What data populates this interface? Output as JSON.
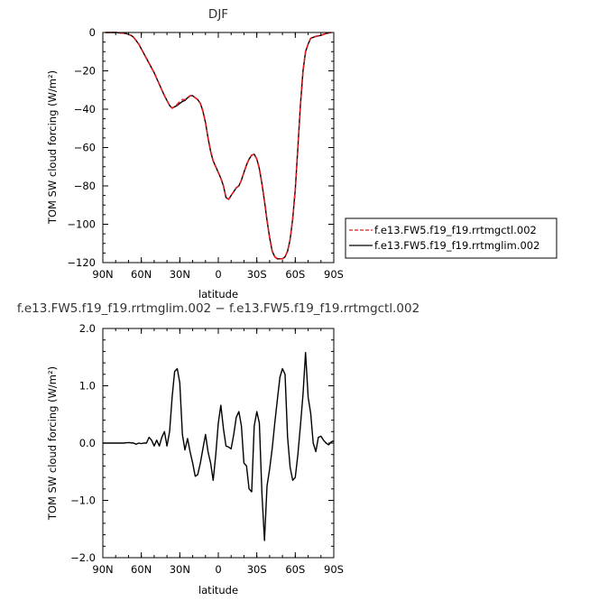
{
  "chart_data": [
    {
      "type": "line",
      "title": "DJF",
      "xlabel": "latitude",
      "ylabel": "TOM SW cloud forcing (W/m²)",
      "xlim": [
        90,
        -90
      ],
      "ylim": [
        -120,
        0
      ],
      "x_ticks": [
        "90N",
        "60N",
        "30N",
        "0",
        "30S",
        "60S",
        "90S"
      ],
      "y_ticks": [
        "0",
        "−20",
        "−40",
        "−60",
        "−80",
        "−100",
        "−120"
      ],
      "legend_position": "right",
      "series": [
        {
          "name": "f.e13.FW5.f19_f19.rrtmgctl.002",
          "color": "#e41a1c",
          "dash": true,
          "x": [
            88,
            80,
            72,
            68,
            66,
            62,
            58,
            54,
            50,
            46,
            42,
            38,
            36,
            32,
            30,
            28,
            26,
            24,
            22,
            20,
            18,
            16,
            14,
            12,
            10,
            8,
            6,
            4,
            2,
            0,
            -2,
            -4,
            -6,
            -8,
            -10,
            -12,
            -14,
            -16,
            -18,
            -20,
            -22,
            -24,
            -26,
            -28,
            -30,
            -32,
            -34,
            -36,
            -38,
            -40,
            -42,
            -44,
            -46,
            -48,
            -50,
            -52,
            -54,
            -56,
            -58,
            -60,
            -62,
            -64,
            -66,
            -68,
            -70,
            -72,
            -76,
            -80,
            -84,
            -88
          ],
          "y": [
            0,
            0,
            -0.5,
            -1.5,
            -2.5,
            -6,
            -11,
            -16,
            -21,
            -27,
            -33,
            -38,
            -39.5,
            -37.5,
            -36,
            -35,
            -35,
            -34.5,
            -33,
            -33,
            -34,
            -35,
            -37,
            -41,
            -47,
            -55,
            -62,
            -67,
            -70,
            -73,
            -76,
            -80,
            -86,
            -87,
            -85,
            -83,
            -81,
            -80,
            -77,
            -73,
            -69,
            -66,
            -64,
            -63.5,
            -66,
            -71,
            -79,
            -88,
            -98,
            -107,
            -114,
            -117,
            -118,
            -118,
            -118,
            -117,
            -114,
            -108,
            -97,
            -82,
            -60,
            -38,
            -20,
            -10,
            -6,
            -3,
            -2,
            -1.5,
            -0.5,
            0
          ]
        },
        {
          "name": "f.e13.FW5.f19_f19.rrtmglim.002",
          "color": "#000000",
          "dash": false,
          "x": [
            88,
            80,
            72,
            68,
            66,
            62,
            58,
            54,
            50,
            46,
            42,
            38,
            36,
            32,
            30,
            28,
            26,
            24,
            22,
            20,
            18,
            16,
            14,
            12,
            10,
            8,
            6,
            4,
            2,
            0,
            -2,
            -4,
            -6,
            -8,
            -10,
            -12,
            -14,
            -16,
            -18,
            -20,
            -22,
            -24,
            -26,
            -28,
            -30,
            -32,
            -34,
            -36,
            -38,
            -40,
            -42,
            -44,
            -46,
            -48,
            -50,
            -52,
            -54,
            -56,
            -58,
            -60,
            -62,
            -64,
            -66,
            -68,
            -70,
            -72,
            -76,
            -80,
            -84,
            -88
          ],
          "y": [
            0,
            0,
            -0.5,
            -1.5,
            -2.5,
            -6,
            -11,
            -16,
            -21,
            -27,
            -33,
            -38,
            -39.5,
            -38,
            -37,
            -36,
            -35.5,
            -34,
            -33,
            -33,
            -34,
            -35,
            -37,
            -41,
            -47,
            -55,
            -62,
            -67,
            -70,
            -73,
            -76,
            -80,
            -86,
            -87,
            -85,
            -83,
            -81,
            -80,
            -77,
            -73,
            -69,
            -66,
            -64,
            -63.5,
            -66,
            -71,
            -79,
            -88,
            -98,
            -107,
            -114,
            -117,
            -118,
            -118,
            -118,
            -117,
            -114,
            -108,
            -97,
            -82,
            -60,
            -38,
            -20,
            -10,
            -6,
            -3,
            -2,
            -1.5,
            -0.5,
            0
          ]
        }
      ]
    },
    {
      "type": "line",
      "title": "f.e13.FW5.f19_f19.rrtmglim.002 − f.e13.FW5.f19_f19.rrtmgctl.002",
      "xlabel": "latitude",
      "ylabel": "TOM SW cloud forcing (W/m²)",
      "xlim": [
        90,
        -90
      ],
      "ylim": [
        -2.0,
        2.0
      ],
      "x_ticks": [
        "90N",
        "60N",
        "30N",
        "0",
        "30S",
        "60S",
        "90S"
      ],
      "y_ticks": [
        "2.0",
        "1.0",
        "0.0",
        "−1.0",
        "−2.0"
      ],
      "series": [
        {
          "name": "",
          "color": "#000000",
          "x": [
            90,
            86,
            82,
            78,
            74,
            70,
            66,
            64,
            62,
            60,
            58,
            56,
            54,
            52,
            50,
            48,
            46,
            44,
            42,
            40,
            38,
            36,
            34,
            32,
            30,
            28,
            26,
            24,
            22,
            20,
            18,
            16,
            14,
            12,
            10,
            8,
            6,
            4,
            2,
            0,
            -2,
            -4,
            -6,
            -8,
            -10,
            -12,
            -14,
            -16,
            -18,
            -20,
            -22,
            -24,
            -26,
            -28,
            -30,
            -32,
            -34,
            -36,
            -38,
            -40,
            -42,
            -44,
            -46,
            -48,
            -50,
            -52,
            -54,
            -56,
            -58,
            -60,
            -62,
            -64,
            -66,
            -68,
            -70,
            -72,
            -74,
            -76,
            -78,
            -80,
            -82,
            -84,
            -86,
            -88,
            -90
          ],
          "y": [
            0,
            0,
            0,
            0,
            0,
            0.01,
            0,
            -0.02,
            0,
            -0.01,
            0,
            0,
            0.1,
            0.05,
            -0.05,
            0.05,
            -0.05,
            0.1,
            0.2,
            -0.05,
            0.2,
            0.8,
            1.25,
            1.3,
            1.05,
            0.15,
            -0.12,
            0.08,
            -0.15,
            -0.35,
            -0.58,
            -0.55,
            -0.35,
            -0.1,
            0.15,
            -0.15,
            -0.35,
            -0.65,
            -0.2,
            0.35,
            0.66,
            0.25,
            -0.05,
            -0.07,
            -0.1,
            0.15,
            0.45,
            0.55,
            0.3,
            -0.35,
            -0.4,
            -0.8,
            -0.85,
            0.3,
            0.55,
            0.35,
            -0.9,
            -1.7,
            -0.75,
            -0.45,
            -0.1,
            0.35,
            0.75,
            1.15,
            1.3,
            1.2,
            0.1,
            -0.42,
            -0.65,
            -0.6,
            -0.2,
            0.3,
            0.85,
            1.58,
            0.8,
            0.52,
            0.0,
            -0.15,
            0.1,
            0.12,
            0.05,
            0.0,
            -0.03,
            0.02,
            0.04
          ]
        }
      ]
    }
  ]
}
